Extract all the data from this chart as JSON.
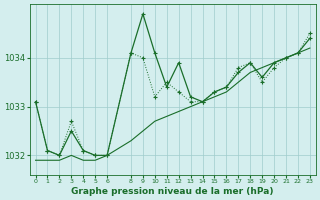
{
  "title": "Graphe pression niveau de la mer (hPa)",
  "background_color": "#d4eeee",
  "grid_color": "#a0cccc",
  "line_color": "#1a6e2a",
  "xlim": [
    -0.5,
    23.5
  ],
  "ylim": [
    1031.6,
    1035.1
  ],
  "yticks": [
    1032,
    1033,
    1034
  ],
  "xticks": [
    0,
    1,
    2,
    3,
    4,
    5,
    6,
    8,
    9,
    10,
    11,
    12,
    13,
    14,
    15,
    16,
    17,
    18,
    19,
    20,
    21,
    22,
    23
  ],
  "series1_x": [
    0,
    1,
    2,
    3,
    4,
    5,
    6,
    8,
    9,
    10,
    11,
    12,
    13,
    14,
    15,
    16,
    17,
    18,
    19,
    20,
    21,
    22,
    23
  ],
  "series1_y": [
    1033.1,
    1032.1,
    1032.0,
    1032.7,
    1032.1,
    1032.0,
    1032.0,
    1034.1,
    1034.0,
    1033.2,
    1033.5,
    1033.3,
    1033.1,
    1033.1,
    1033.3,
    1033.4,
    1033.8,
    1033.9,
    1033.5,
    1033.8,
    1034.0,
    1034.1,
    1034.5
  ],
  "series2_x": [
    0,
    1,
    2,
    3,
    4,
    5,
    6,
    8,
    9,
    10,
    11,
    12,
    13,
    14,
    15,
    16,
    17,
    18,
    19,
    20,
    21,
    22,
    23
  ],
  "series2_y": [
    1033.1,
    1032.1,
    1032.0,
    1032.5,
    1032.1,
    1032.0,
    1032.0,
    1034.1,
    1034.9,
    1034.1,
    1033.4,
    1033.9,
    1033.2,
    1033.1,
    1033.3,
    1033.4,
    1033.7,
    1033.9,
    1033.6,
    1033.9,
    1034.0,
    1034.1,
    1034.4
  ],
  "series3_x": [
    0,
    1,
    2,
    3,
    4,
    5,
    6,
    8,
    9,
    10,
    11,
    12,
    13,
    14,
    15,
    16,
    17,
    18,
    19,
    20,
    21,
    22,
    23
  ],
  "series3_y": [
    1031.9,
    1031.9,
    1031.9,
    1032.0,
    1031.9,
    1031.9,
    1032.0,
    1032.3,
    1032.5,
    1032.7,
    1032.8,
    1032.9,
    1033.0,
    1033.1,
    1033.2,
    1033.3,
    1033.5,
    1033.7,
    1033.8,
    1033.9,
    1034.0,
    1034.1,
    1034.2
  ]
}
